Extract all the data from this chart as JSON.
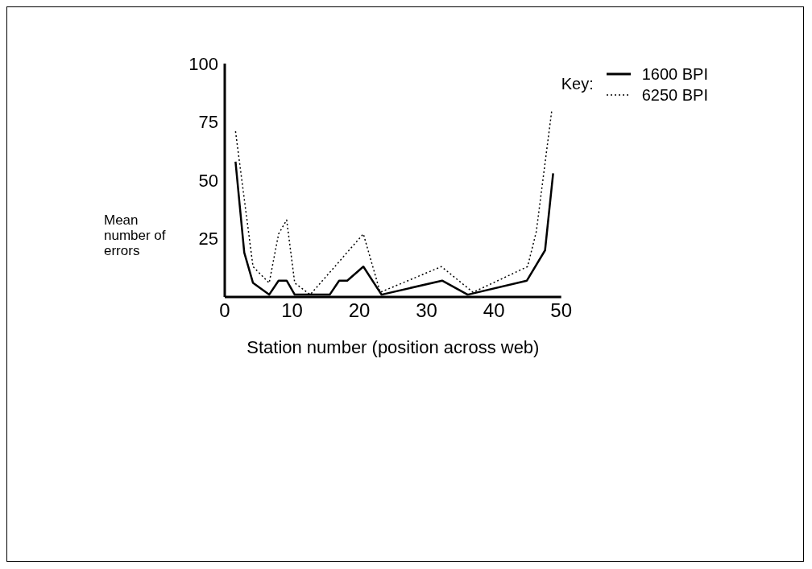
{
  "chart_data": {
    "type": "line",
    "xlabel": "Station number (position across web)",
    "ylabel": "Mean number of errors",
    "legend_title": "Key:",
    "legend": "top right",
    "grid": false,
    "marker": "none",
    "xlim": [
      0,
      50
    ],
    "xticks": [
      0,
      10,
      20,
      30,
      40,
      50
    ],
    "ylim": [
      0,
      100
    ],
    "yticks": [
      25,
      50,
      75,
      100
    ],
    "series": [
      {
        "name": "1600 BPI",
        "color": "#000000",
        "line_style": "solid",
        "x": [
          1.6,
          2.9,
          4.2,
          6.6,
          8,
          9.2,
          10.4,
          15.6,
          17,
          18.2,
          20.6,
          23.3,
          32.3,
          36.1,
          44.9,
          47.6,
          48.8
        ],
        "values": [
          58,
          19,
          6,
          1,
          7,
          7,
          1,
          1,
          7,
          7,
          13,
          1,
          7,
          1,
          7,
          20,
          53
        ]
      },
      {
        "name": "6250 BPI",
        "color": "#000000",
        "line_style": "dotted",
        "x": [
          1.6,
          4.2,
          6.6,
          8,
          9.2,
          10.4,
          12.7,
          20.6,
          23.1,
          32.2,
          36.9,
          45,
          46.3,
          48.6
        ],
        "values": [
          71,
          13,
          6,
          27,
          33,
          6,
          1,
          27,
          2,
          13,
          2,
          13,
          28,
          80
        ]
      }
    ]
  }
}
